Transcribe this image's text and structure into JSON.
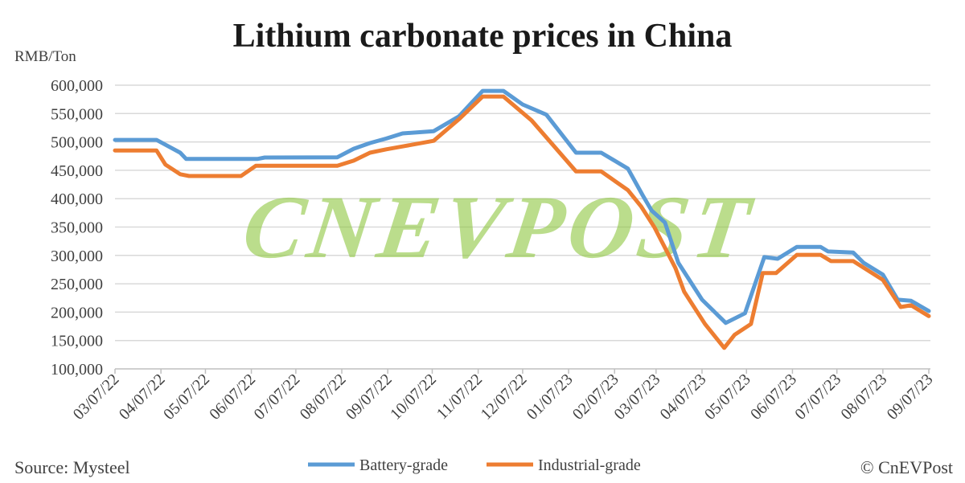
{
  "chart_data": {
    "type": "line",
    "title": "Lithium carbonate prices in China",
    "ylabel": "RMB/Ton",
    "xlabel": "",
    "ylim": [
      100000,
      600000
    ],
    "yticks": [
      "600,000",
      "550,000",
      "500,000",
      "450,000",
      "400,000",
      "350,000",
      "300,000",
      "250,000",
      "200,000",
      "150,000",
      "100,000"
    ],
    "ytick_values": [
      600000,
      550000,
      500000,
      450000,
      400000,
      350000,
      300000,
      250000,
      200000,
      150000,
      100000
    ],
    "xlim": [
      "2022-03-07",
      "2023-09-07"
    ],
    "xticks": [
      "03/07/22",
      "04/07/22",
      "05/07/22",
      "06/07/22",
      "07/07/22",
      "08/07/22",
      "09/07/22",
      "10/07/22",
      "11/07/22",
      "12/07/22",
      "01/07/23",
      "02/07/23",
      "03/07/23",
      "04/07/23",
      "05/07/23",
      "06/07/23",
      "07/07/23",
      "08/07/23",
      "09/07/23"
    ],
    "xtick_dates": [
      "2022-03-07",
      "2022-04-07",
      "2022-05-07",
      "2022-06-07",
      "2022-07-07",
      "2022-08-07",
      "2022-09-07",
      "2022-10-07",
      "2022-11-07",
      "2022-12-07",
      "2023-01-07",
      "2023-02-07",
      "2023-03-07",
      "2023-04-07",
      "2023-05-07",
      "2023-06-07",
      "2023-07-07",
      "2023-08-07",
      "2023-09-07"
    ],
    "grid": true,
    "legend_position": "bottom",
    "series": [
      {
        "name": "Battery-grade",
        "color": "#5B9BD5",
        "points": [
          [
            "2022-03-07",
            503500
          ],
          [
            "2022-04-04",
            503500
          ],
          [
            "2022-04-10",
            495000
          ],
          [
            "2022-04-20",
            481000
          ],
          [
            "2022-04-24",
            470000
          ],
          [
            "2022-06-11",
            470000
          ],
          [
            "2022-06-16",
            472500
          ],
          [
            "2022-08-04",
            473000
          ],
          [
            "2022-08-15",
            488000
          ],
          [
            "2022-08-26",
            498000
          ],
          [
            "2022-09-06",
            506000
          ],
          [
            "2022-09-17",
            515000
          ],
          [
            "2022-10-08",
            519000
          ],
          [
            "2022-10-25",
            545000
          ],
          [
            "2022-11-10",
            590000
          ],
          [
            "2022-11-24",
            590000
          ],
          [
            "2022-12-07",
            566000
          ],
          [
            "2022-12-23",
            548000
          ],
          [
            "2023-01-12",
            481000
          ],
          [
            "2023-01-29",
            481000
          ],
          [
            "2023-02-16",
            453000
          ],
          [
            "2023-02-26",
            406000
          ],
          [
            "2023-03-04",
            379000
          ],
          [
            "2023-03-13",
            358000
          ],
          [
            "2023-03-22",
            287000
          ],
          [
            "2023-04-07",
            222000
          ],
          [
            "2023-04-23",
            181000
          ],
          [
            "2023-05-06",
            198000
          ],
          [
            "2023-05-19",
            297000
          ],
          [
            "2023-05-28",
            294000
          ],
          [
            "2023-06-10",
            315000
          ],
          [
            "2023-06-26",
            315000
          ],
          [
            "2023-07-01",
            307000
          ],
          [
            "2023-07-18",
            305000
          ],
          [
            "2023-07-25",
            287000
          ],
          [
            "2023-08-07",
            266000
          ],
          [
            "2023-08-17",
            222000
          ],
          [
            "2023-08-26",
            220000
          ],
          [
            "2023-09-07",
            202000
          ]
        ]
      },
      {
        "name": "Industrial-grade",
        "color": "#ED7D31",
        "points": [
          [
            "2022-03-07",
            485000
          ],
          [
            "2022-04-04",
            485000
          ],
          [
            "2022-04-10",
            460000
          ],
          [
            "2022-04-20",
            443000
          ],
          [
            "2022-04-26",
            440000
          ],
          [
            "2022-05-31",
            440000
          ],
          [
            "2022-06-10",
            458000
          ],
          [
            "2022-08-04",
            458000
          ],
          [
            "2022-08-15",
            467000
          ],
          [
            "2022-08-26",
            481000
          ],
          [
            "2022-09-06",
            487000
          ],
          [
            "2022-09-17",
            492000
          ],
          [
            "2022-10-08",
            502000
          ],
          [
            "2022-10-25",
            540000
          ],
          [
            "2022-11-10",
            580000
          ],
          [
            "2022-11-24",
            580000
          ],
          [
            "2022-12-13",
            538000
          ],
          [
            "2023-01-12",
            448000
          ],
          [
            "2023-01-29",
            448000
          ],
          [
            "2023-02-16",
            415000
          ],
          [
            "2023-02-25",
            386000
          ],
          [
            "2023-03-06",
            349000
          ],
          [
            "2023-03-20",
            278000
          ],
          [
            "2023-03-26",
            236000
          ],
          [
            "2023-04-09",
            179000
          ],
          [
            "2023-04-22",
            137000
          ],
          [
            "2023-04-29",
            160000
          ],
          [
            "2023-05-10",
            179000
          ],
          [
            "2023-05-18",
            269000
          ],
          [
            "2023-05-27",
            269000
          ],
          [
            "2023-06-10",
            301000
          ],
          [
            "2023-06-26",
            301000
          ],
          [
            "2023-07-03",
            290000
          ],
          [
            "2023-07-18",
            290000
          ],
          [
            "2023-08-07",
            257000
          ],
          [
            "2023-08-19",
            209000
          ],
          [
            "2023-08-26",
            212000
          ],
          [
            "2023-09-07",
            193000
          ]
        ]
      }
    ]
  },
  "watermark": "CNEVPOST",
  "footer": {
    "source": "Source: Mysteel",
    "credit": "© CnEVPost"
  }
}
